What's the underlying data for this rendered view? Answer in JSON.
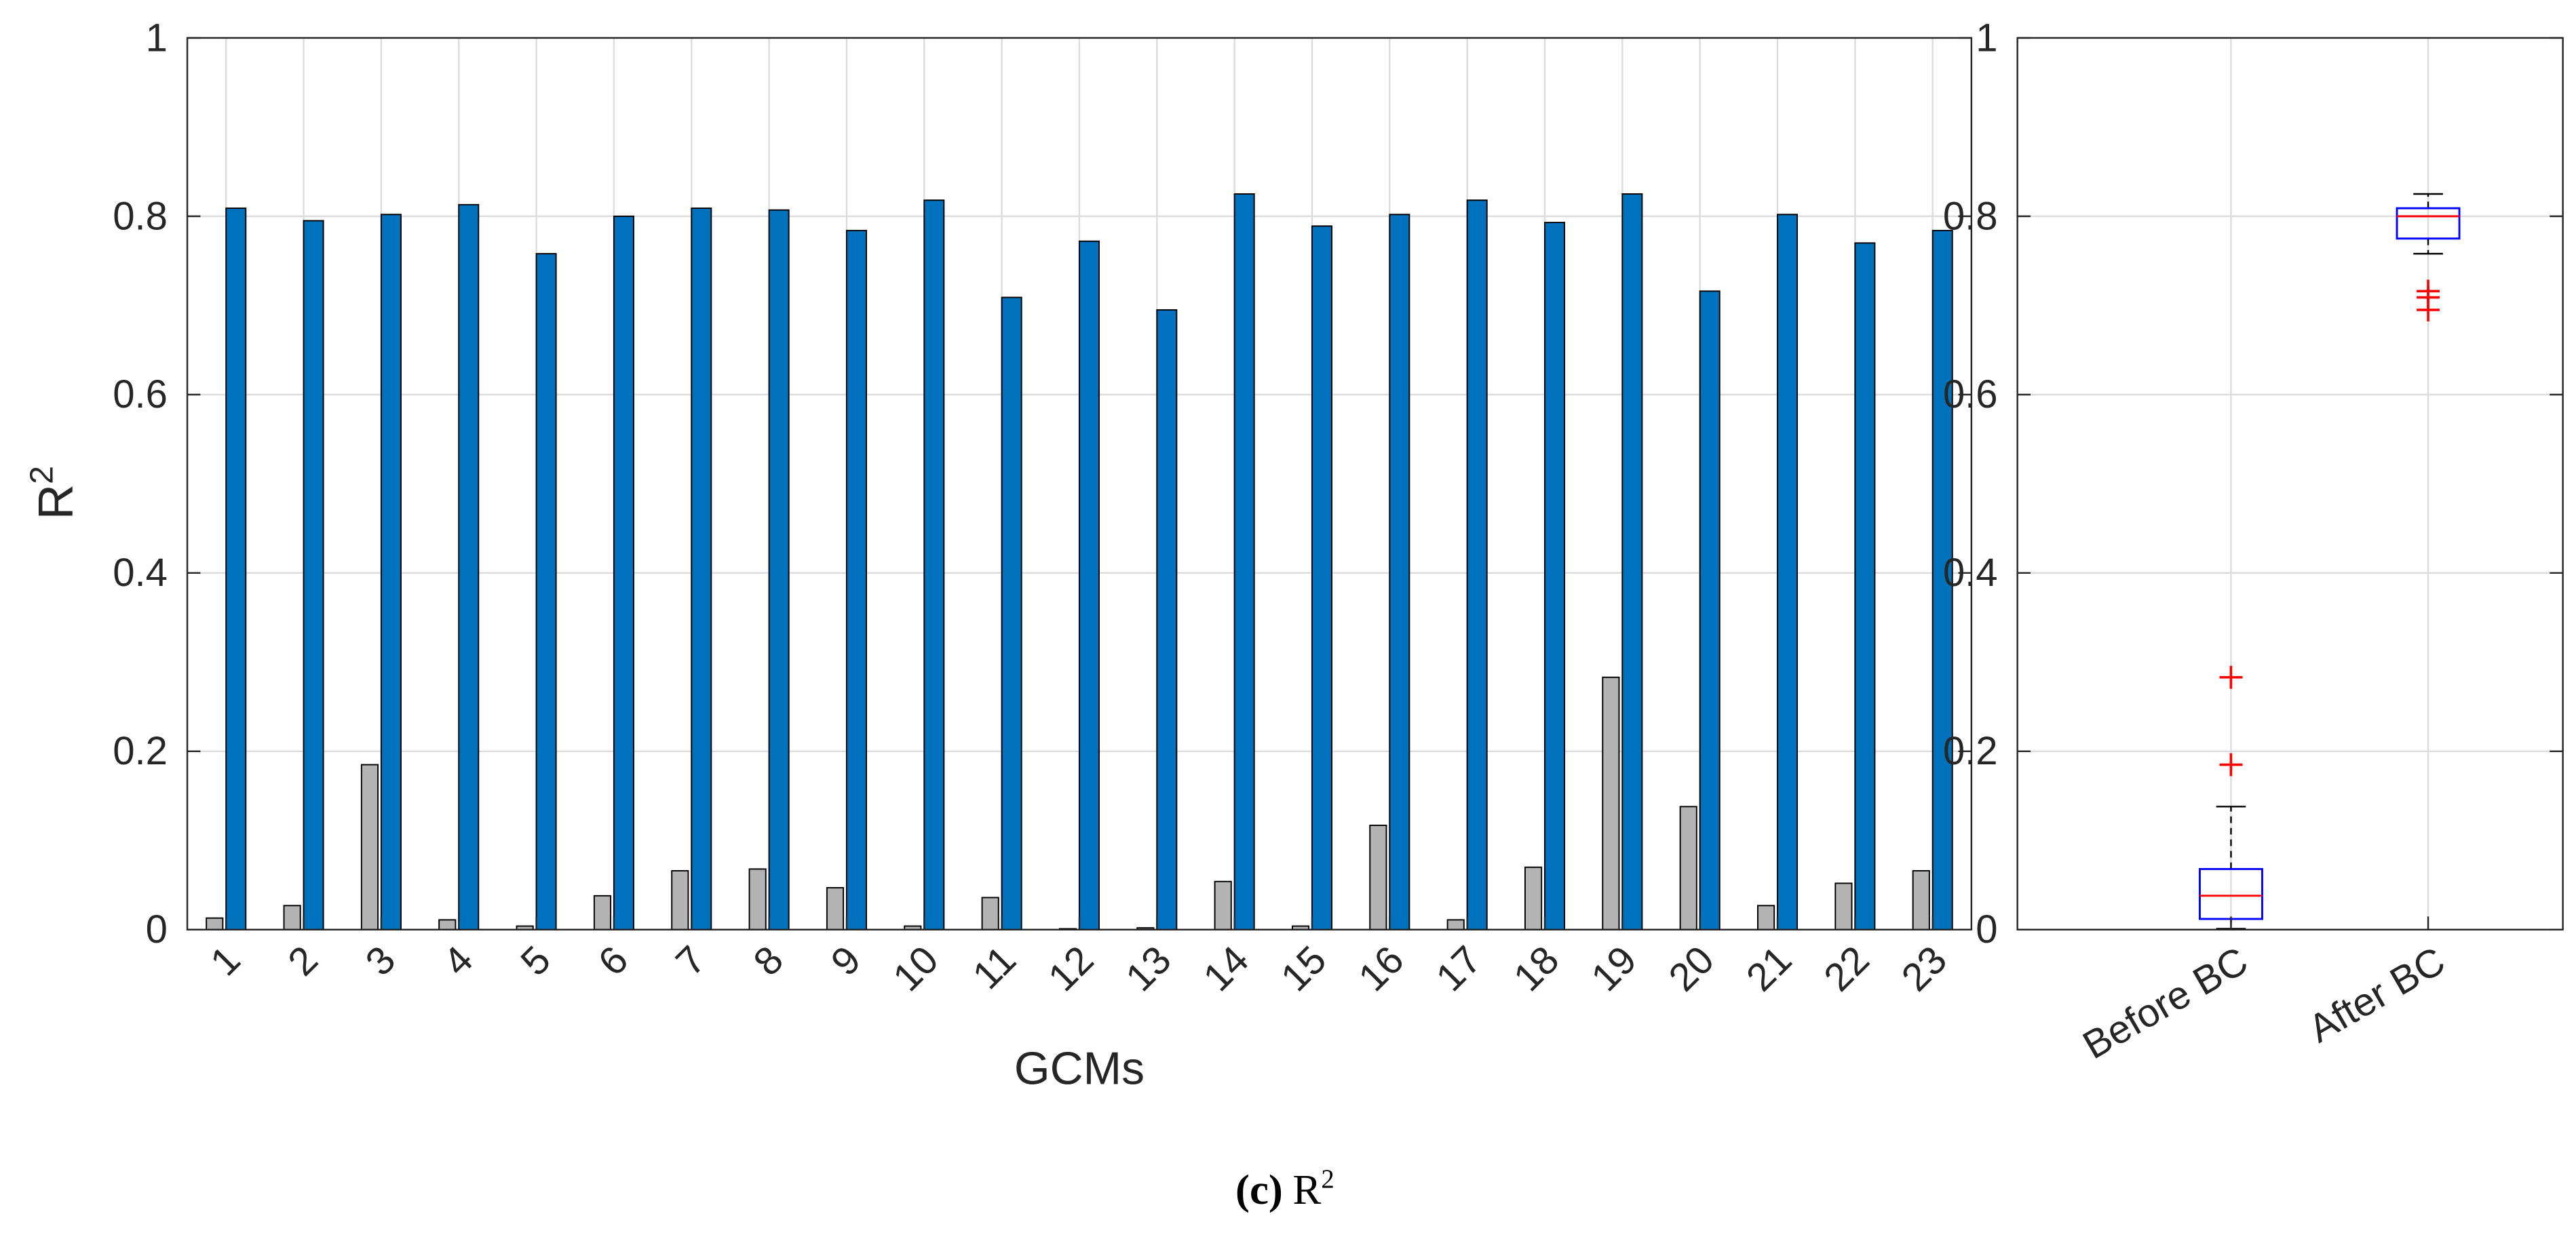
{
  "chart_data": [
    {
      "type": "bar",
      "x_label": "GCMs",
      "y_label": {
        "base": "R",
        "sup": "2"
      },
      "categories": [
        "1",
        "2",
        "3",
        "4",
        "5",
        "6",
        "7",
        "8",
        "9",
        "10",
        "11",
        "12",
        "13",
        "14",
        "15",
        "16",
        "17",
        "18",
        "19",
        "20",
        "21",
        "22",
        "23"
      ],
      "series": [
        {
          "color": "#b3b3b3",
          "values": [
            0.013,
            0.027,
            0.185,
            0.011,
            0.004,
            0.038,
            0.066,
            0.068,
            0.047,
            0.004,
            0.036,
            0.001,
            0.002,
            0.054,
            0.004,
            0.117,
            0.011,
            0.07,
            0.283,
            0.138,
            0.027,
            0.052,
            0.066
          ]
        },
        {
          "color": "#0072bd",
          "values": [
            0.809,
            0.795,
            0.802,
            0.813,
            0.758,
            0.8,
            0.809,
            0.807,
            0.784,
            0.818,
            0.709,
            0.772,
            0.695,
            0.825,
            0.789,
            0.802,
            0.818,
            0.793,
            0.825,
            0.716,
            0.802,
            0.77,
            0.784
          ]
        }
      ],
      "ylim": [
        0,
        1
      ],
      "yticks": [
        0,
        0.2,
        0.4,
        0.6,
        0.8,
        1
      ],
      "grid": true
    },
    {
      "type": "box",
      "categories": [
        "Before BC",
        "After BC"
      ],
      "boxes": [
        {
          "low": 0.001,
          "q1": 0.012,
          "median": 0.038,
          "q3": 0.068,
          "high": 0.138,
          "outliers": [
            0.185,
            0.283
          ]
        },
        {
          "low": 0.758,
          "q1": 0.775,
          "median": 0.8,
          "q3": 0.809,
          "high": 0.825,
          "outliers": [
            0.695,
            0.709,
            0.716
          ]
        }
      ],
      "box_color": "#0000ff",
      "median_color": "#ff0000",
      "outlier_color": "#ff0000",
      "ylim": [
        0,
        1
      ],
      "yticks": [
        0,
        0.2,
        0.4,
        0.6,
        0.8,
        1
      ],
      "grid": true
    }
  ],
  "caption": {
    "label": "(c)",
    "base": "R",
    "sup": "2"
  }
}
